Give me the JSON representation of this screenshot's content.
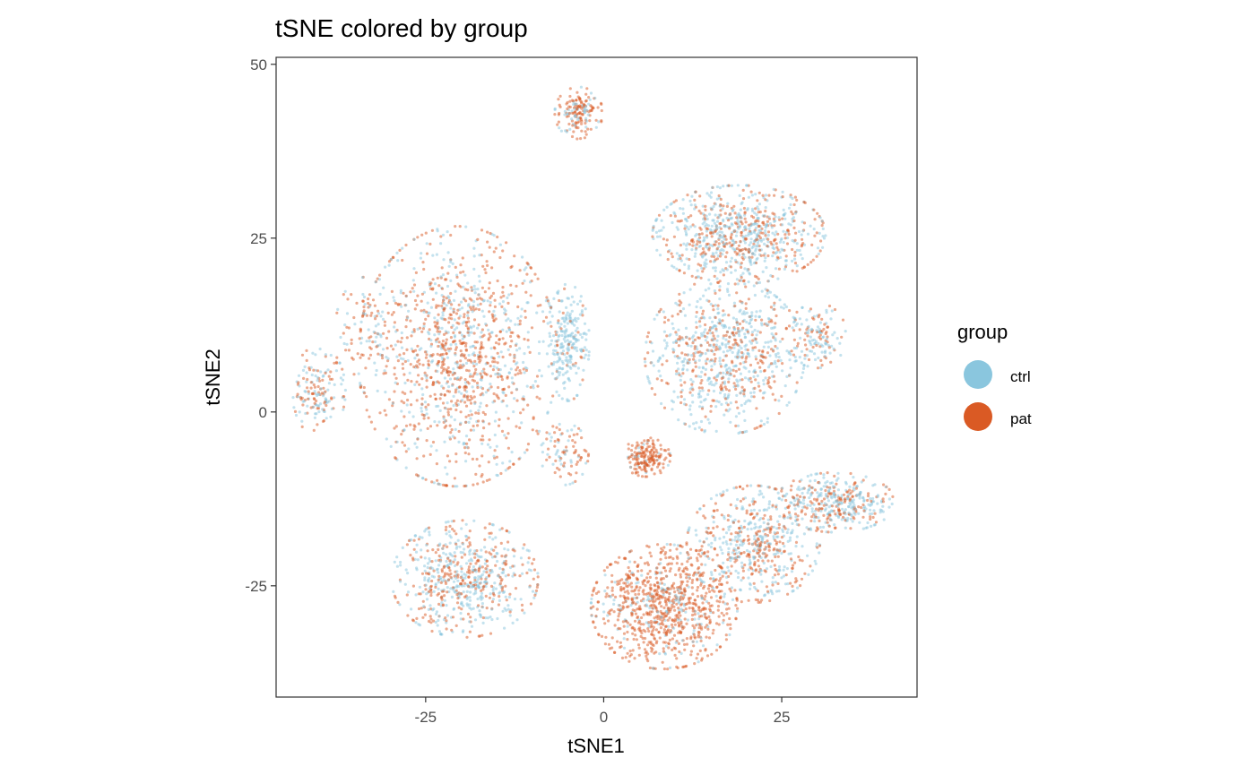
{
  "chart_data": {
    "type": "scatter",
    "title": "tSNE colored by group",
    "xlabel": "tSNE1",
    "ylabel": "tSNE2",
    "xlim": [
      -46,
      44
    ],
    "ylim": [
      -41,
      51
    ],
    "x_ticks": [
      -25,
      0,
      25
    ],
    "y_ticks": [
      -25,
      0,
      25,
      50
    ],
    "grid": false,
    "legend": {
      "title": "group",
      "position": "right",
      "entries": [
        {
          "label": "ctrl",
          "color": "#8AC6DE"
        },
        {
          "label": "pat",
          "color": "#DA5A24"
        }
      ]
    },
    "series": [
      {
        "name": "ctrl",
        "color": "#8AC6DE",
        "opacity": 0.5
      },
      {
        "name": "pat",
        "color": "#DA5A24",
        "opacity": 0.5
      }
    ],
    "clusters": [
      {
        "cx": -20.5,
        "cy": 8,
        "sx": 7.5,
        "sy": 10,
        "n": 1200,
        "pat_frac": 0.62
      },
      {
        "cx": -40,
        "cy": 3,
        "sx": 2.0,
        "sy": 3.5,
        "n": 160,
        "pat_frac": 0.45
      },
      {
        "cx": -33,
        "cy": 12,
        "sx": 2.5,
        "sy": 4,
        "n": 90,
        "pat_frac": 0.55
      },
      {
        "cx": -5,
        "cy": 10,
        "sx": 1.6,
        "sy": 4.5,
        "n": 230,
        "pat_frac": 0.12
      },
      {
        "cx": -3.5,
        "cy": 43,
        "sx": 1.8,
        "sy": 2.0,
        "n": 170,
        "pat_frac": 0.65
      },
      {
        "cx": 19,
        "cy": 25.5,
        "sx": 6.5,
        "sy": 3.8,
        "n": 780,
        "pat_frac": 0.45
      },
      {
        "cx": 17,
        "cy": 8,
        "sx": 6.0,
        "sy": 6.0,
        "n": 800,
        "pat_frac": 0.35
      },
      {
        "cx": 30,
        "cy": 11,
        "sx": 2.2,
        "sy": 2.5,
        "n": 130,
        "pat_frac": 0.35
      },
      {
        "cx": 6,
        "cy": -6.5,
        "sx": 1.8,
        "sy": 1.5,
        "n": 180,
        "pat_frac": 0.9
      },
      {
        "cx": -5.5,
        "cy": -6,
        "sx": 1.8,
        "sy": 2.4,
        "n": 90,
        "pat_frac": 0.65
      },
      {
        "cx": -19.5,
        "cy": -24,
        "sx": 5.5,
        "sy": 4.5,
        "n": 650,
        "pat_frac": 0.4
      },
      {
        "cx": 8.5,
        "cy": -28,
        "sx": 5.5,
        "sy": 4.8,
        "n": 900,
        "pat_frac": 0.82
      },
      {
        "cx": 21,
        "cy": -19,
        "sx": 5.0,
        "sy": 4.5,
        "n": 560,
        "pat_frac": 0.5
      },
      {
        "cx": 32.5,
        "cy": -13,
        "sx": 4.5,
        "sy": 2.3,
        "n": 400,
        "pat_frac": 0.4
      }
    ]
  }
}
